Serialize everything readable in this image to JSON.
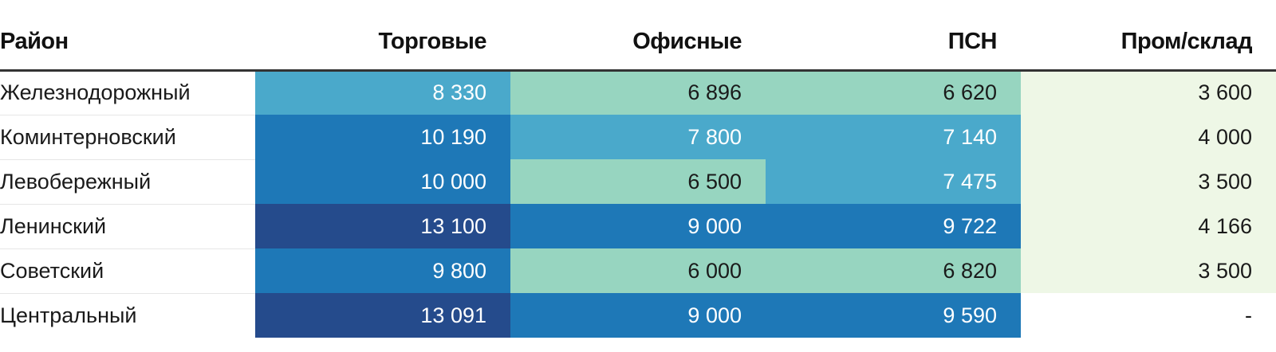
{
  "chart_data": {
    "type": "table",
    "columns": [
      "Район",
      "Торговые",
      "Офисные",
      "ПСН",
      "Пром/склад"
    ],
    "rows": [
      {
        "name": "Железнодорожный",
        "values": [
          "8 330",
          "6 896",
          "6 620",
          "3 600"
        ]
      },
      {
        "name": "Коминтерновский",
        "values": [
          "10 190",
          "7 800",
          "7 140",
          "4 000"
        ]
      },
      {
        "name": "Левобережный",
        "values": [
          "10 000",
          "6 500",
          "7 475",
          "3 500"
        ]
      },
      {
        "name": "Ленинский",
        "values": [
          "13 100",
          "9 000",
          "9 722",
          "4 166"
        ]
      },
      {
        "name": "Советский",
        "values": [
          "9 800",
          "6 000",
          "6 820",
          "3 500"
        ]
      },
      {
        "name": "Центральный",
        "values": [
          "13 091",
          "9 000",
          "9 590",
          "-"
        ]
      }
    ],
    "color_scale": [
      {
        "max": 5000,
        "bg": "#eef7e6",
        "fg": "#1a1a1a"
      },
      {
        "max": 7000,
        "bg": "#97d5c0",
        "fg": "#1a1a1a"
      },
      {
        "max": 9000,
        "bg": "#4aa9cb",
        "fg": "#ffffff"
      },
      {
        "max": 12000,
        "bg": "#1e78b7",
        "fg": "#ffffff"
      },
      {
        "max": 100000,
        "bg": "#254b8c",
        "fg": "#ffffff"
      }
    ],
    "empty_bg": "#ffffff"
  }
}
